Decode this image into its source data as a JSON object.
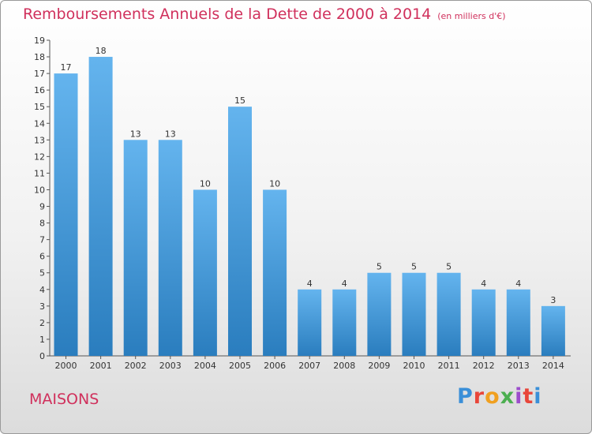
{
  "header": {
    "title": "Remboursements Annuels de la Dette de 2000 à 2014",
    "unit": "(en milliers d'€)"
  },
  "footer": {
    "city": "MAISONS",
    "brand": "Proxiti",
    "brand_colors": [
      "#3a8fd8",
      "#e8463a",
      "#f0a020",
      "#4caf50",
      "#9c4dcc",
      "#e8463a",
      "#3a8fd8"
    ]
  },
  "colors": {
    "title": "#d0305c",
    "bar_top": "#64b4ee",
    "bar_bottom": "#2a7dbe"
  },
  "chart_data": {
    "type": "bar",
    "title": "Remboursements Annuels de la Dette de 2000 à 2014",
    "categories": [
      "2000",
      "2001",
      "2002",
      "2003",
      "2004",
      "2005",
      "2006",
      "2007",
      "2008",
      "2009",
      "2010",
      "2011",
      "2012",
      "2013",
      "2014"
    ],
    "values": [
      17,
      18,
      13,
      13,
      10,
      15,
      10,
      4,
      4,
      5,
      5,
      5,
      4,
      4,
      3
    ],
    "data_labels": [
      "17",
      "18",
      "13",
      "13",
      "10",
      "15",
      "10",
      "4",
      "4",
      "5",
      "5",
      "5",
      "4",
      "4",
      "3"
    ],
    "ylim": [
      0,
      19
    ],
    "yticks": [
      0,
      1,
      2,
      3,
      4,
      5,
      6,
      7,
      8,
      9,
      10,
      11,
      12,
      13,
      14,
      15,
      16,
      17,
      18,
      19
    ],
    "ytick_labels": [
      "0",
      "1",
      "2",
      "3",
      "4",
      "5",
      "6",
      "7",
      "8",
      "9",
      "10",
      "11",
      "12",
      "13",
      "14",
      "15",
      "16",
      "17",
      "18",
      "19"
    ],
    "grid": false,
    "legend": "none"
  }
}
